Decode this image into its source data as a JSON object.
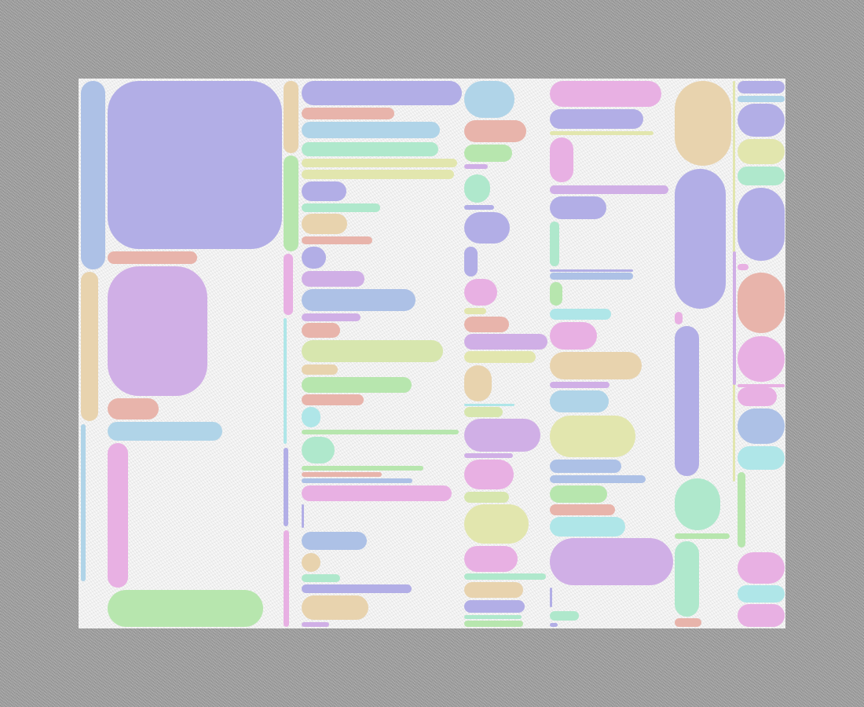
{
  "palette": {
    "lavender": "#b2aee6",
    "blue": "#adc1e6",
    "salmon": "#e8b4ab",
    "tan": "#e8d3ae",
    "purple": "#d0afe6",
    "lightblue": "#b0d4e8",
    "pink": "#e8b0e3",
    "green": "#b7e6ae",
    "mint": "#afe8cc",
    "yellow": "#e2e6ae",
    "yellowgreen": "#d7e6ae",
    "cyan": "#afe6e8"
  },
  "background": {
    "outer": "#a3a3a3",
    "canvas": "#f7f7f7"
  }
}
